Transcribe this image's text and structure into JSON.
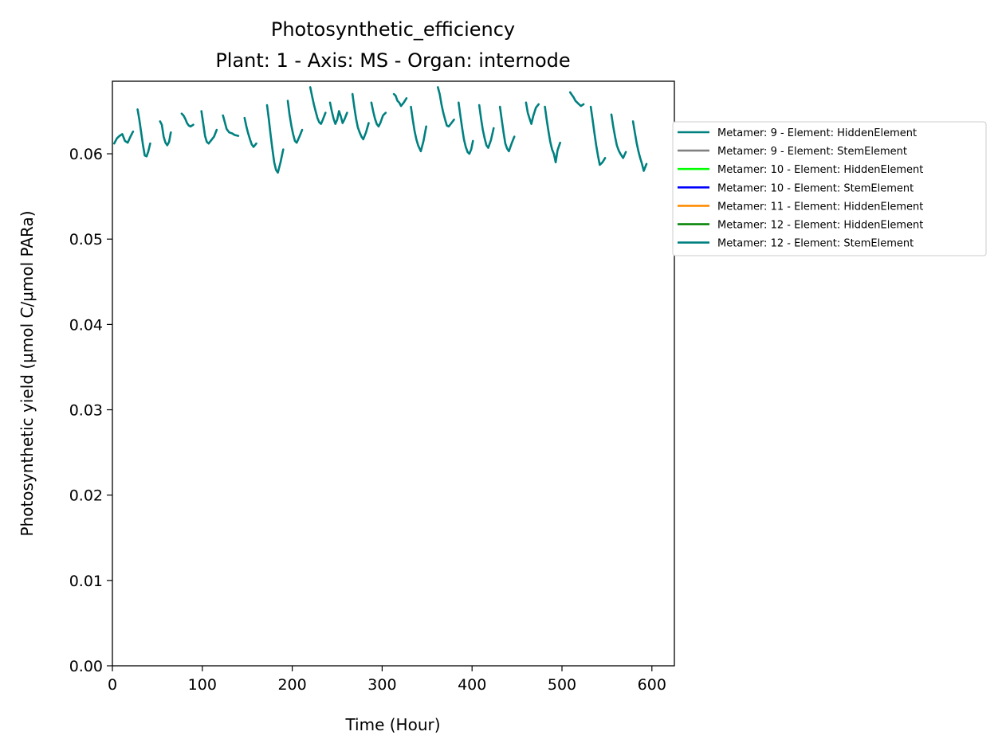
{
  "chart_data": {
    "type": "line",
    "title": "Photosynthetic_efficiency",
    "subtitle": "Plant: 1 - Axis: MS - Organ: internode",
    "xlabel": "Time (Hour)",
    "ylabel": "Photosynthetic yield (µmol C/µmol PARa)",
    "xlim": [
      0,
      625
    ],
    "ylim": [
      0,
      0.0685
    ],
    "xticks": [
      0,
      100,
      200,
      300,
      400,
      500,
      600
    ],
    "xtick_labels": [
      "0",
      "100",
      "200",
      "300",
      "400",
      "500",
      "600"
    ],
    "yticks": [
      0,
      0.01,
      0.02,
      0.03,
      0.04,
      0.05,
      0.06
    ],
    "ytick_labels": [
      "0.00",
      "0.01",
      "0.02",
      "0.03",
      "0.04",
      "0.05",
      "0.06"
    ],
    "grid": false,
    "legend_placement": "outside-right",
    "series": [
      {
        "name": "Metamer: 9 - Element: HiddenElement",
        "color": "#008080",
        "x": [],
        "y": []
      },
      {
        "name": "Metamer: 9 - Element: StemElement",
        "color": "#808080",
        "x": [],
        "y": []
      },
      {
        "name": "Metamer: 10 - Element: HiddenElement",
        "color": "#00ff00",
        "x": [],
        "y": []
      },
      {
        "name": "Metamer: 10 - Element: StemElement",
        "color": "#0000ff",
        "x": [],
        "y": []
      },
      {
        "name": "Metamer: 11 - Element: HiddenElement",
        "color": "#ff8c00",
        "x": [],
        "y": []
      },
      {
        "name": "Metamer: 12 - Element: HiddenElement",
        "color": "#008000",
        "x": [],
        "y": []
      },
      {
        "name": "Metamer: 12 - Element: StemElement",
        "color": "#008080",
        "segments": [
          {
            "x": [
              2,
              5,
              8,
              11,
              14,
              17,
              20,
              23
            ],
            "y": [
              0.0612,
              0.0618,
              0.0621,
              0.0623,
              0.0615,
              0.0613,
              0.062,
              0.0626
            ]
          },
          {
            "x": [
              28,
              30,
              32,
              34,
              36,
              38,
              40,
              42
            ],
            "y": [
              0.0652,
              0.064,
              0.0625,
              0.061,
              0.0598,
              0.0597,
              0.0603,
              0.0612
            ]
          },
          {
            "x": [
              53,
              55,
              57,
              59,
              61,
              63,
              65
            ],
            "y": [
              0.0638,
              0.0634,
              0.062,
              0.0613,
              0.061,
              0.0614,
              0.0625
            ]
          },
          {
            "x": [
              77,
              79,
              81,
              83,
              85,
              87,
              90
            ],
            "y": [
              0.0647,
              0.0645,
              0.0641,
              0.0636,
              0.0633,
              0.0632,
              0.0634
            ]
          },
          {
            "x": [
              99,
              101,
              103,
              105,
              107,
              110,
              113,
              116
            ],
            "y": [
              0.065,
              0.0636,
              0.0621,
              0.0614,
              0.0612,
              0.0616,
              0.062,
              0.0628
            ]
          },
          {
            "x": [
              123,
              125,
              127,
              130,
              133,
              136,
              140
            ],
            "y": [
              0.0645,
              0.0637,
              0.0629,
              0.0625,
              0.0624,
              0.0622,
              0.0621
            ]
          },
          {
            "x": [
              147,
              149,
              151,
              153,
              155,
              157,
              160
            ],
            "y": [
              0.0642,
              0.0632,
              0.0624,
              0.0617,
              0.0611,
              0.0608,
              0.0612
            ]
          },
          {
            "x": [
              172,
              174,
              176,
              178,
              180,
              182,
              184,
              187,
              190
            ],
            "y": [
              0.0657,
              0.064,
              0.0622,
              0.0605,
              0.059,
              0.0581,
              0.0578,
              0.059,
              0.0605
            ]
          },
          {
            "x": [
              195,
              197,
              199,
              201,
              203,
              205,
              208,
              211
            ],
            "y": [
              0.0662,
              0.0646,
              0.0633,
              0.0623,
              0.0615,
              0.0613,
              0.062,
              0.0628
            ]
          },
          {
            "x": [
              220,
              222,
              224,
              226,
              228,
              230,
              232,
              234,
              237
            ],
            "y": [
              0.0678,
              0.0668,
              0.0658,
              0.065,
              0.0642,
              0.0637,
              0.0635,
              0.064,
              0.0648
            ]
          },
          {
            "x": [
              242,
              244,
              246,
              248,
              250,
              252,
              254,
              256,
              258,
              261
            ],
            "y": [
              0.066,
              0.065,
              0.0641,
              0.0635,
              0.064,
              0.065,
              0.0644,
              0.0636,
              0.064,
              0.0648
            ]
          },
          {
            "x": [
              267,
              269,
              271,
              273,
              275,
              277,
              279,
              282,
              285
            ],
            "y": [
              0.067,
              0.0655,
              0.0641,
              0.0631,
              0.0625,
              0.062,
              0.0617,
              0.0625,
              0.0636
            ]
          },
          {
            "x": [
              288,
              290,
              292,
              294,
              296,
              298,
              301,
              304
            ],
            "y": [
              0.066,
              0.065,
              0.0641,
              0.0635,
              0.0632,
              0.0636,
              0.0645,
              0.0648
            ]
          },
          {
            "x": [
              313,
              315,
              317,
              319,
              321,
              324,
              327
            ],
            "y": [
              0.067,
              0.0668,
              0.0662,
              0.066,
              0.0656,
              0.066,
              0.0665
            ]
          },
          {
            "x": [
              332,
              334,
              336,
              338,
              340,
              343,
              346,
              349
            ],
            "y": [
              0.0655,
              0.064,
              0.0627,
              0.0617,
              0.061,
              0.0603,
              0.0615,
              0.0632
            ]
          },
          {
            "x": [
              362,
              364,
              366,
              368,
              370,
              372,
              374,
              377,
              380
            ],
            "y": [
              0.0678,
              0.067,
              0.0658,
              0.0648,
              0.064,
              0.0633,
              0.0632,
              0.0636,
              0.064
            ]
          },
          {
            "x": [
              385,
              387,
              389,
              391,
              393,
              395,
              397,
              399,
              401
            ],
            "y": [
              0.066,
              0.0645,
              0.063,
              0.0617,
              0.0608,
              0.0602,
              0.06,
              0.0605,
              0.0615
            ]
          },
          {
            "x": [
              408,
              410,
              412,
              414,
              416,
              418,
              421,
              424
            ],
            "y": [
              0.0657,
              0.0641,
              0.0628,
              0.0618,
              0.061,
              0.0607,
              0.0616,
              0.063
            ]
          },
          {
            "x": [
              431,
              433,
              435,
              437,
              439,
              441,
              444,
              447
            ],
            "y": [
              0.0655,
              0.064,
              0.0625,
              0.0612,
              0.0606,
              0.0603,
              0.0612,
              0.062
            ]
          },
          {
            "x": [
              460,
              462,
              464,
              466,
              468,
              471,
              474
            ],
            "y": [
              0.066,
              0.0648,
              0.0641,
              0.0635,
              0.0644,
              0.0654,
              0.0658
            ]
          },
          {
            "x": [
              481,
              483,
              485,
              487,
              489,
              491,
              493,
              495,
              498
            ],
            "y": [
              0.0655,
              0.064,
              0.0626,
              0.0614,
              0.0605,
              0.06,
              0.059,
              0.0604,
              0.0613
            ]
          },
          {
            "x": [
              509,
              511,
              513,
              515,
              518,
              521,
              524
            ],
            "y": [
              0.0672,
              0.0669,
              0.0666,
              0.0662,
              0.0659,
              0.0656,
              0.0658
            ]
          },
          {
            "x": [
              532,
              534,
              536,
              538,
              540,
              542,
              545,
              548
            ],
            "y": [
              0.0655,
              0.064,
              0.0625,
              0.061,
              0.0598,
              0.0587,
              0.059,
              0.0595
            ]
          },
          {
            "x": [
              555,
              557,
              559,
              561,
              563,
              565,
              568,
              571
            ],
            "y": [
              0.0646,
              0.0632,
              0.062,
              0.061,
              0.0604,
              0.06,
              0.0595,
              0.0602
            ]
          },
          {
            "x": [
              579,
              581,
              583,
              585,
              587,
              589,
              591,
              594
            ],
            "y": [
              0.0638,
              0.0625,
              0.0613,
              0.0603,
              0.0595,
              0.0588,
              0.058,
              0.0588
            ]
          }
        ]
      }
    ]
  }
}
